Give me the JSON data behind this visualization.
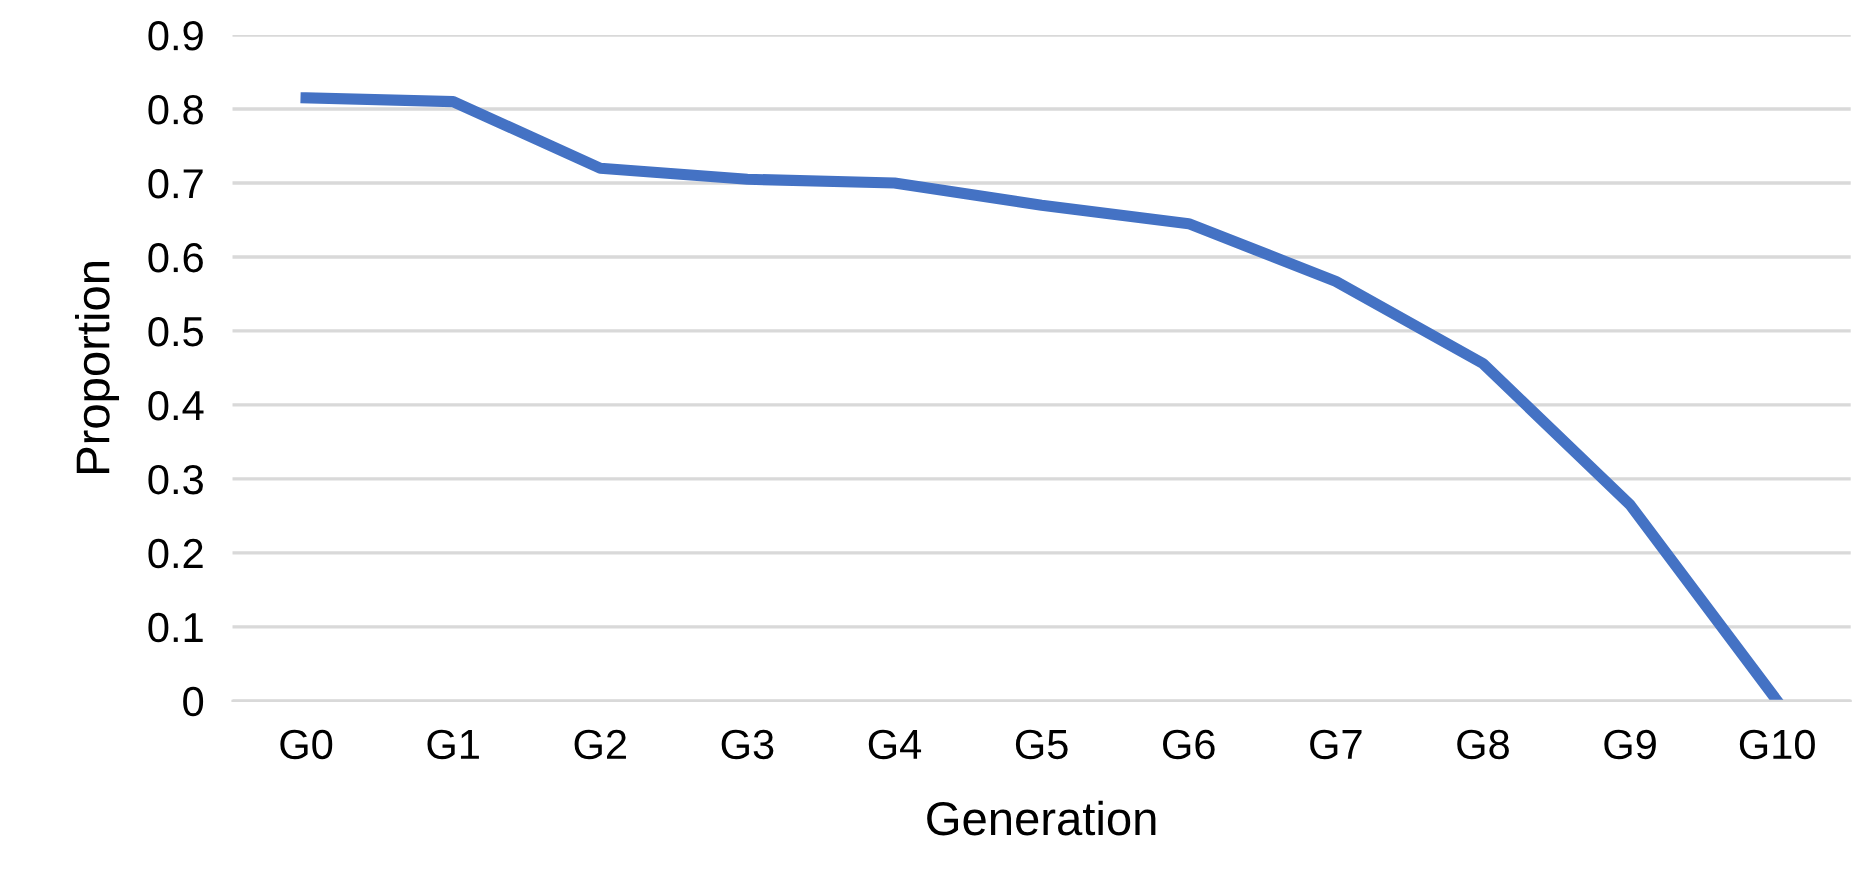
{
  "chart_data": {
    "type": "line",
    "xlabel": "Generation",
    "ylabel": "Proportion",
    "categories": [
      "G0",
      "G1",
      "G2",
      "G3",
      "G4",
      "G5",
      "G6",
      "G7",
      "G8",
      "G9",
      "G10"
    ],
    "series": [
      {
        "color": "#4472c4",
        "values": [
          0.815,
          0.81,
          0.72,
          0.705,
          0.7,
          0.67,
          0.645,
          0.567,
          0.456,
          0.265,
          0.0
        ]
      }
    ],
    "ylim": [
      0,
      0.9
    ],
    "yticks": [
      0,
      0.1,
      0.2,
      0.3,
      0.4,
      0.5,
      0.6,
      0.7,
      0.8,
      0.9
    ],
    "grid": "y",
    "marker": "none",
    "line_style": "solid"
  }
}
